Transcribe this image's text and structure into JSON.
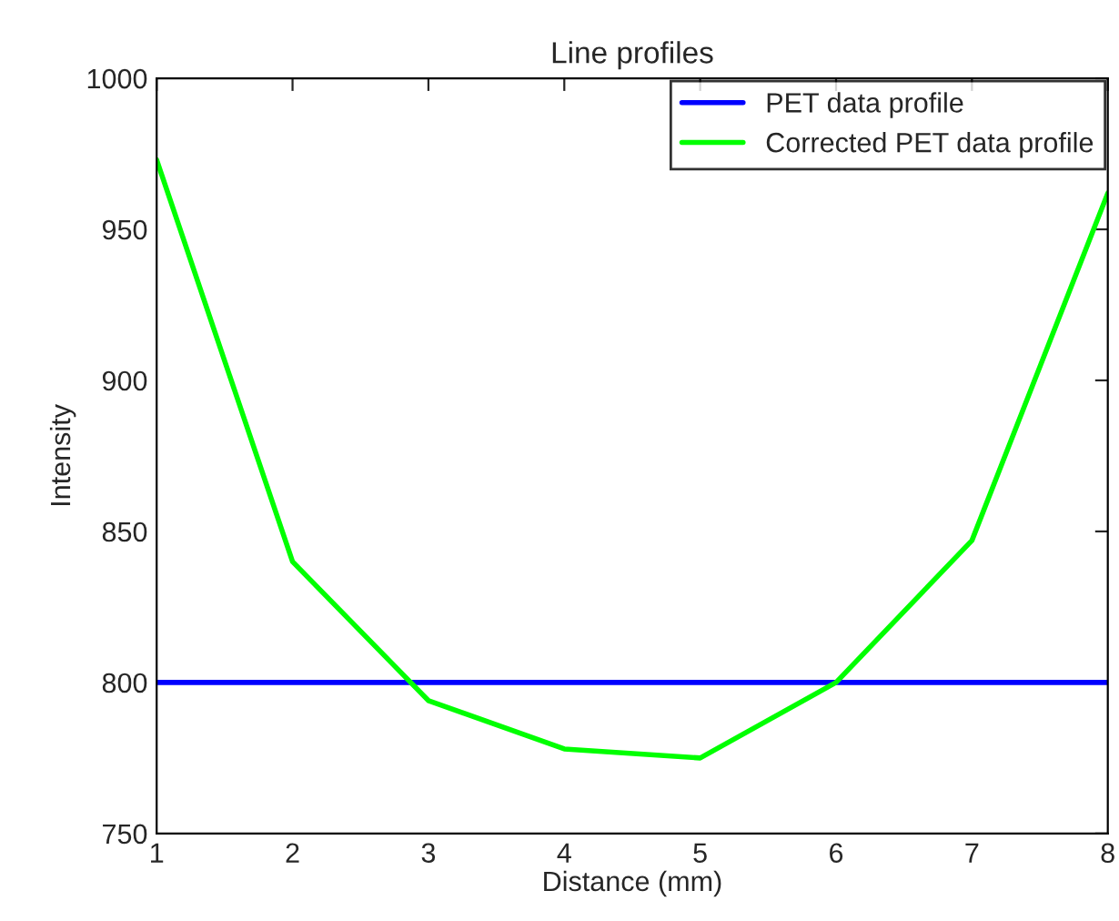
{
  "chart_data": {
    "type": "line",
    "title": "Line profiles",
    "xlabel": "Distance (mm)",
    "ylabel": "Intensity",
    "x": [
      1,
      2,
      3,
      4,
      5,
      6,
      7,
      8
    ],
    "series": [
      {
        "name": "PET data profile",
        "color": "#0000ff",
        "values": [
          800,
          800,
          800,
          800,
          800,
          800,
          800,
          800
        ]
      },
      {
        "name": "Corrected PET data profile",
        "color": "#00ff00",
        "values": [
          973,
          840,
          794,
          778,
          775,
          800,
          847,
          962
        ]
      }
    ],
    "xlim": [
      1,
      8
    ],
    "xticks": [
      1,
      2,
      3,
      4,
      5,
      6,
      7,
      8
    ],
    "ylim": [
      750,
      1000
    ],
    "yticks": [
      750,
      800,
      850,
      900,
      950,
      1000
    ],
    "legend": "top right",
    "grid": false,
    "marker": "none",
    "line_style": "solid"
  }
}
